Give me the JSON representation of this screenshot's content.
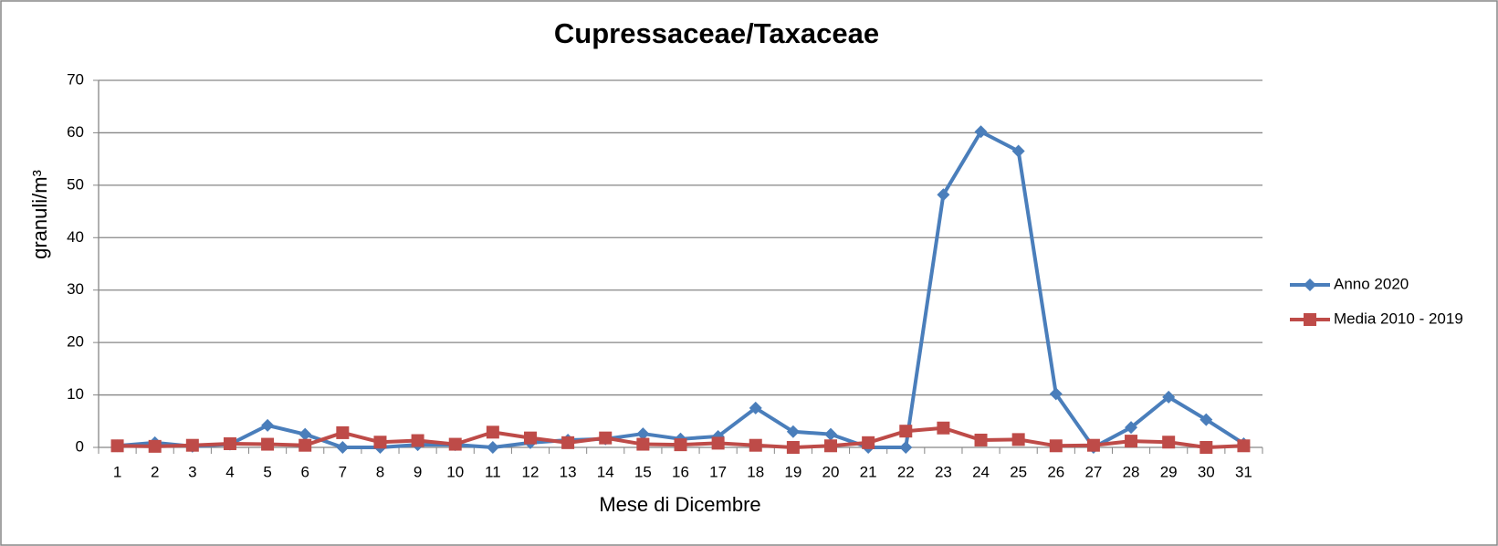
{
  "chart_data": {
    "type": "line",
    "title": "Cupressaceae/Taxaceae",
    "x_label": "Mese di Dicembre",
    "y_label": "granuli/m³",
    "categories": [
      "1",
      "2",
      "3",
      "4",
      "5",
      "6",
      "7",
      "8",
      "9",
      "10",
      "11",
      "12",
      "13",
      "14",
      "15",
      "16",
      "17",
      "18",
      "19",
      "20",
      "21",
      "22",
      "23",
      "24",
      "25",
      "26",
      "27",
      "28",
      "29",
      "30",
      "31"
    ],
    "series": [
      {
        "name": "Anno 2020",
        "color": "#4a7ebb",
        "marker": "diamond",
        "values": [
          0.3,
          0.9,
          0.2,
          0.6,
          4.2,
          2.5,
          0,
          0,
          0.5,
          0.5,
          0,
          0.9,
          1.4,
          1.6,
          2.6,
          1.6,
          2.1,
          7.5,
          3.0,
          2.5,
          0,
          0,
          48.2,
          60.2,
          56.5,
          10.2,
          0,
          3.8,
          9.6,
          5.3,
          0.7
        ]
      },
      {
        "name": "Media 2010 - 2019",
        "color": "#be4b48",
        "marker": "square",
        "values": [
          0.3,
          0.2,
          0.4,
          0.7,
          0.6,
          0.4,
          2.8,
          1.0,
          1.3,
          0.6,
          2.9,
          1.8,
          0.9,
          1.8,
          0.6,
          0.5,
          0.8,
          0.4,
          0,
          0.3,
          0.9,
          3.1,
          3.7,
          1.4,
          1.5,
          0.3,
          0.4,
          1.2,
          1.0,
          0,
          0.3
        ]
      }
    ],
    "ylim": [
      0,
      70
    ],
    "yticks": [
      0,
      10,
      20,
      30,
      40,
      50,
      60,
      70
    ],
    "grid": true,
    "legend": "right"
  }
}
